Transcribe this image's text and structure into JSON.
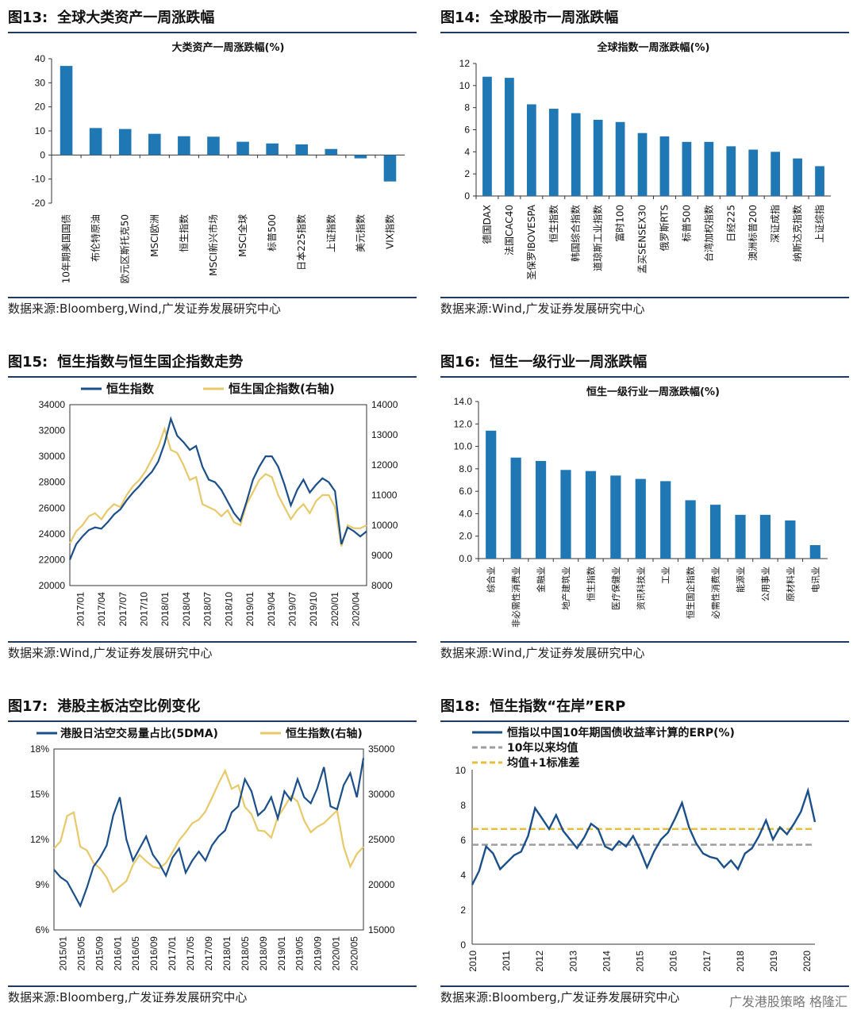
{
  "colors": {
    "blue": "#1f77b4",
    "navy": "#1a4f8a",
    "gold": "#e8c96a",
    "gray": "#9e9e9e",
    "dashgold": "#e6bd3c",
    "rule": "#1f3a60"
  },
  "charts": [
    {
      "id": "fig13",
      "fig_no": "图13:",
      "heading": "全球大类资产一周涨跌幅",
      "source": "数据来源:Bloomberg,Wind,广发证券发展研究中心",
      "chart_data": {
        "type": "bar",
        "title": "大类资产一周涨跌幅(%)",
        "categories": [
          "10年期美国国债",
          "布伦特原油",
          "欧元区斯托克50",
          "MSCI欧洲",
          "恒生指数",
          "MSCI新兴市场",
          "MSCI全球",
          "标普500",
          "日本225指数",
          "上证指数",
          "美元指数",
          "VIX指数"
        ],
        "values": [
          37.0,
          11.2,
          10.8,
          8.8,
          7.8,
          7.6,
          5.5,
          4.8,
          4.4,
          2.5,
          -1.4,
          -11.0
        ],
        "yticks": [
          40,
          30,
          20,
          10,
          0,
          -10,
          -20
        ],
        "ylim": [
          -20,
          40
        ]
      }
    },
    {
      "id": "fig14",
      "fig_no": "图14:",
      "heading": "全球股市一周涨跌幅",
      "source": "数据来源:Wind,广发证券发展研究中心",
      "chart_data": {
        "type": "bar",
        "title": "全球指数一周涨跌幅(%)",
        "categories": [
          "德国DAX",
          "法国CAC40",
          "圣保罗IBOVESPA",
          "恒生指数",
          "韩国综合指数",
          "道琼斯工业指数",
          "富时100",
          "孟买SENSEX30",
          "俄罗斯RTS",
          "标普500",
          "台湾加权指数",
          "日经225",
          "澳洲标普200",
          "深证成指",
          "纳斯达克指数",
          "上证综指"
        ],
        "values": [
          10.8,
          10.7,
          8.3,
          7.9,
          7.5,
          6.9,
          6.7,
          5.7,
          5.4,
          4.9,
          4.9,
          4.5,
          4.2,
          4.0,
          3.4,
          2.7
        ],
        "yticks": [
          12,
          10,
          8,
          6,
          4,
          2,
          0
        ],
        "ylim": [
          0,
          12
        ]
      }
    },
    {
      "id": "fig15",
      "fig_no": "图15:",
      "heading": "恒生指数与恒生国企指数走势",
      "source": "数据来源:Wind,广发证券发展研究中心",
      "chart_data": {
        "type": "line",
        "legend": [
          "恒生指数",
          "恒生国企指数(右轴)"
        ],
        "xticks": [
          "2017/01",
          "2017/04",
          "2017/07",
          "2017/10",
          "2018/01",
          "2018/04",
          "2018/07",
          "2018/10",
          "2019/01",
          "2019/04",
          "2019/07",
          "2019/10",
          "2020/01",
          "2020/04"
        ],
        "yticks_left": [
          34000,
          32000,
          30000,
          28000,
          26000,
          24000,
          22000,
          20000
        ],
        "yticks_right": [
          14000,
          13000,
          12000,
          11000,
          10000,
          9000,
          8000
        ],
        "ylim_left": [
          20000,
          34000
        ],
        "ylim_right": [
          8000,
          14000
        ],
        "series": [
          {
            "name": "恒生指数",
            "axis": "left",
            "values": [
              22000,
              23200,
              23800,
              24300,
              24500,
              24400,
              24900,
              25500,
              25900,
              26600,
              27200,
              27700,
              28300,
              28800,
              29600,
              31000,
              32900,
              31600,
              31100,
              30500,
              30800,
              29200,
              28200,
              28000,
              27400,
              26500,
              25600,
              25000,
              26500,
              28200,
              29200,
              30000,
              30000,
              29200,
              27800,
              26200,
              27400,
              28200,
              27200,
              27800,
              28300,
              28000,
              27300,
              23200,
              24500,
              24200,
              23800,
              24200
            ]
          },
          {
            "name": "恒生国企指数(右轴)",
            "axis": "right",
            "values": [
              9400,
              9800,
              10000,
              10300,
              10400,
              10200,
              10500,
              10700,
              10600,
              11000,
              11300,
              11500,
              11800,
              12200,
              12600,
              13200,
              12500,
              12400,
              12000,
              11500,
              11600,
              10700,
              10600,
              10500,
              10300,
              10500,
              10100,
              10000,
              10700,
              11100,
              11500,
              11700,
              11600,
              11000,
              10600,
              10200,
              10500,
              10700,
              10400,
              10800,
              11000,
              11000,
              10600,
              9300,
              10000,
              9900,
              9900,
              10000
            ]
          }
        ]
      }
    },
    {
      "id": "fig16",
      "fig_no": "图16:",
      "heading": "恒生一级行业一周涨跌幅",
      "source": "数据来源:Wind,广发证券发展研究中心",
      "chart_data": {
        "type": "bar",
        "title": "恒生一级行业一周涨跌幅(%)",
        "categories": [
          "综合业",
          "非必需性消费业",
          "金融业",
          "地产建筑业",
          "恒生指数",
          "医疗保健业",
          "资讯科技业",
          "工业",
          "恒生国企指数",
          "必需性消费业",
          "能源业",
          "公用事业",
          "原材料业",
          "电讯业"
        ],
        "values": [
          11.4,
          9.0,
          8.7,
          7.9,
          7.8,
          7.4,
          7.1,
          6.9,
          5.2,
          4.8,
          3.9,
          3.9,
          3.4,
          1.2
        ],
        "yticks": [
          "14.0",
          "12.0",
          "10.0",
          "8.0",
          "6.0",
          "4.0",
          "2.0",
          "0.0"
        ],
        "ylim": [
          0,
          14
        ]
      }
    },
    {
      "id": "fig17",
      "fig_no": "图17:",
      "heading": "港股主板沽空比例变化",
      "source": "数据来源:Bloomberg,广发证券发展研究中心",
      "chart_data": {
        "type": "line",
        "legend": [
          "港股日沽空交易量占比(5DMA)",
          "恒生指数(右轴)"
        ],
        "xticks": [
          "2015/01",
          "2015/05",
          "2015/09",
          "2016/01",
          "2016/05",
          "2016/09",
          "2017/01",
          "2017/05",
          "2017/09",
          "2018/01",
          "2018/05",
          "2018/09",
          "2019/01",
          "2019/05",
          "2019/09",
          "2020/01",
          "2020/05"
        ],
        "yticks_left": [
          "18%",
          "15%",
          "12%",
          "9%",
          "6%"
        ],
        "yticks_right": [
          35000,
          30000,
          25000,
          20000,
          15000
        ],
        "ylim_left": [
          6,
          18
        ],
        "ylim_right": [
          15000,
          35000
        ],
        "series": [
          {
            "name": "港股日沽空交易量占比(5DMA)",
            "axis": "left",
            "values": [
              10.0,
              9.5,
              9.2,
              8.4,
              7.6,
              8.8,
              10.2,
              10.8,
              11.6,
              13.6,
              14.8,
              12.0,
              10.6,
              11.4,
              12.2,
              11.0,
              10.4,
              9.6,
              10.8,
              11.4,
              9.8,
              10.6,
              11.2,
              10.6,
              11.6,
              12.2,
              12.6,
              13.8,
              14.2,
              16.0,
              15.2,
              13.6,
              14.0,
              14.8,
              13.4,
              15.2,
              14.6,
              16.0,
              14.8,
              14.4,
              15.4,
              16.8,
              14.2,
              14.0,
              15.6,
              16.4,
              14.8,
              17.4
            ]
          },
          {
            "name": "恒生指数(右轴)",
            "axis": "right",
            "values": [
              24000,
              24800,
              27600,
              28000,
              24200,
              23800,
              22400,
              21800,
              20800,
              19200,
              19800,
              20400,
              22200,
              23300,
              22600,
              22000,
              21800,
              22400,
              23600,
              24900,
              25800,
              26800,
              27200,
              28100,
              29600,
              31200,
              32600,
              30600,
              31000,
              28600,
              27800,
              26000,
              25900,
              25200,
              27500,
              28600,
              29800,
              29200,
              27100,
              25800,
              26400,
              26800,
              27500,
              28200,
              24200,
              22000,
              23400,
              24200
            ]
          }
        ]
      }
    },
    {
      "id": "fig18",
      "fig_no": "图18:",
      "heading": "恒生指数“在岸”ERP",
      "source": "数据来源:Bloomberg,广发证券发展研究中心",
      "chart_data": {
        "type": "line",
        "legend": [
          "恒指以中国10年期国债收益率计算的ERP(%)",
          "10年以来均值",
          "均值+1标准差"
        ],
        "xticks": [
          "2010",
          "2011",
          "2012",
          "2013",
          "2014",
          "2015",
          "2016",
          "2017",
          "2018",
          "2019",
          "2020"
        ],
        "yticks": [
          10,
          8,
          6,
          4,
          2,
          0
        ],
        "ylim": [
          0,
          10
        ],
        "mean": 5.7,
        "mean_plus_1sd": 6.6,
        "series": [
          {
            "name": "恒指以中国10年期国债收益率计算的ERP(%)",
            "values": [
              3.4,
              4.2,
              5.6,
              5.2,
              4.3,
              4.7,
              5.1,
              5.3,
              6.2,
              7.8,
              7.2,
              6.6,
              7.4,
              6.5,
              6.0,
              5.5,
              6.1,
              6.9,
              6.6,
              5.6,
              5.4,
              5.9,
              5.6,
              6.2,
              5.4,
              4.4,
              5.3,
              6.0,
              6.4,
              7.2,
              8.1,
              6.7,
              5.8,
              5.2,
              5.0,
              4.9,
              4.4,
              4.8,
              4.3,
              5.2,
              5.5,
              6.2,
              7.1,
              6.0,
              6.7,
              6.3,
              6.9,
              7.6,
              8.8,
              7.0
            ]
          }
        ]
      }
    }
  ],
  "watermark": "广发港股策略  格隆汇"
}
